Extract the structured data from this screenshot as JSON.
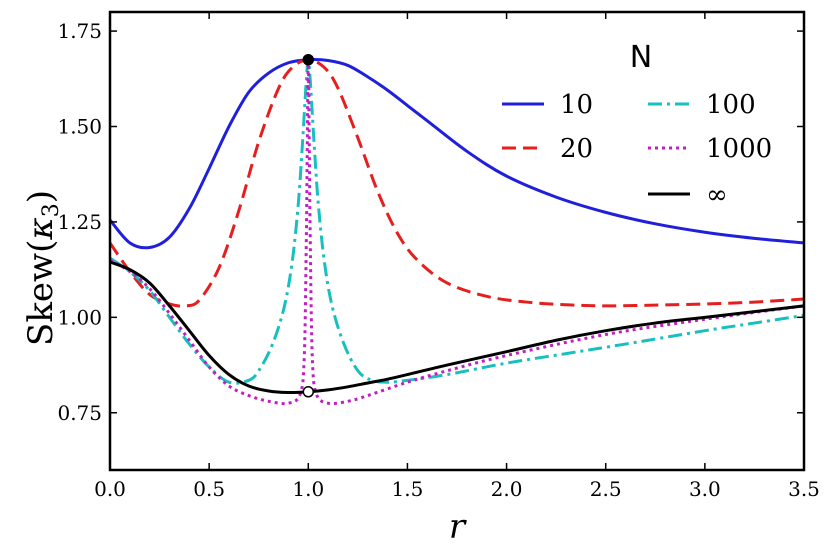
{
  "chart_data": {
    "type": "line",
    "title": "",
    "xlabel": "r",
    "ylabel_main": "Skew",
    "ylabel_sym": "κ",
    "ylabel_sub": "3",
    "xlim": [
      0.0,
      3.5
    ],
    "ylim": [
      0.6,
      1.8
    ],
    "xticks": [
      0.0,
      0.5,
      1.0,
      1.5,
      2.0,
      2.5,
      3.0,
      3.5
    ],
    "xtick_labels": [
      "0.0",
      "0.5",
      "1.0",
      "1.5",
      "2.0",
      "2.5",
      "3.0",
      "3.5"
    ],
    "yticks": [
      0.75,
      1.0,
      1.25,
      1.5,
      1.75
    ],
    "ytick_labels": [
      "0.75",
      "1.00",
      "1.25",
      "1.50",
      "1.75"
    ],
    "legend_title": "N",
    "legend_position": "top-right",
    "series": [
      {
        "name": "10",
        "color": "#1f1fdc",
        "dash": "solid",
        "x": [
          0.0,
          0.1,
          0.2,
          0.3,
          0.4,
          0.5,
          0.6,
          0.7,
          0.8,
          0.9,
          1.0,
          1.1,
          1.2,
          1.3,
          1.4,
          1.5,
          1.6,
          1.8,
          2.0,
          2.25,
          2.5,
          2.75,
          3.0,
          3.25,
          3.5
        ],
        "y": [
          1.255,
          1.195,
          1.183,
          1.21,
          1.285,
          1.39,
          1.5,
          1.59,
          1.64,
          1.667,
          1.675,
          1.673,
          1.66,
          1.63,
          1.595,
          1.555,
          1.515,
          1.435,
          1.37,
          1.315,
          1.275,
          1.245,
          1.223,
          1.207,
          1.195
        ]
      },
      {
        "name": "20",
        "color": "#e51e1e",
        "dash": "dashed",
        "x": [
          0.0,
          0.1,
          0.2,
          0.3,
          0.38,
          0.45,
          0.55,
          0.65,
          0.75,
          0.85,
          0.92,
          1.0,
          1.08,
          1.15,
          1.25,
          1.35,
          1.45,
          1.55,
          1.7,
          1.9,
          2.1,
          2.3,
          2.5,
          2.75,
          3.0,
          3.25,
          3.5
        ],
        "y": [
          1.195,
          1.12,
          1.06,
          1.035,
          1.03,
          1.045,
          1.13,
          1.28,
          1.46,
          1.6,
          1.655,
          1.675,
          1.655,
          1.6,
          1.47,
          1.33,
          1.22,
          1.15,
          1.09,
          1.055,
          1.04,
          1.033,
          1.03,
          1.032,
          1.035,
          1.04,
          1.048
        ]
      },
      {
        "name": "100",
        "color": "#17bfbf",
        "dash": "dashdot",
        "x": [
          0.0,
          0.1,
          0.2,
          0.3,
          0.4,
          0.5,
          0.6,
          0.7,
          0.75,
          0.82,
          0.88,
          0.92,
          0.95,
          0.97,
          0.99,
          1.0,
          1.01,
          1.03,
          1.05,
          1.08,
          1.12,
          1.18,
          1.25,
          1.32,
          1.4,
          1.5,
          1.7,
          2.0,
          2.3,
          2.6,
          3.0,
          3.25,
          3.5
        ],
        "y": [
          1.155,
          1.12,
          1.07,
          1.0,
          0.93,
          0.87,
          0.83,
          0.835,
          0.86,
          0.93,
          1.03,
          1.15,
          1.3,
          1.45,
          1.62,
          1.675,
          1.62,
          1.45,
          1.3,
          1.15,
          1.03,
          0.93,
          0.86,
          0.835,
          0.83,
          0.835,
          0.85,
          0.88,
          0.905,
          0.93,
          0.965,
          0.985,
          1.005
        ]
      },
      {
        "name": "1000",
        "color": "#c21fc2",
        "dash": "dotted",
        "x": [
          0.0,
          0.1,
          0.2,
          0.3,
          0.4,
          0.5,
          0.6,
          0.7,
          0.8,
          0.9,
          0.96,
          0.98,
          0.99,
          0.995,
          1.0,
          1.005,
          1.01,
          1.02,
          1.04,
          1.1,
          1.2,
          1.3,
          1.5,
          1.7,
          2.0,
          2.5,
          3.0,
          3.5
        ],
        "y": [
          1.15,
          1.12,
          1.075,
          1.01,
          0.94,
          0.87,
          0.82,
          0.795,
          0.78,
          0.775,
          0.8,
          0.9,
          1.2,
          1.45,
          1.675,
          1.45,
          1.2,
          0.9,
          0.8,
          0.775,
          0.78,
          0.795,
          0.83,
          0.86,
          0.9,
          0.955,
          0.995,
          1.03
        ]
      },
      {
        "name": "∞",
        "color": "#000000",
        "dash": "solid",
        "x": [
          0.0,
          0.1,
          0.2,
          0.3,
          0.4,
          0.5,
          0.6,
          0.7,
          0.8,
          0.9,
          1.0,
          1.1,
          1.2,
          1.3,
          1.4,
          1.5,
          1.7,
          2.0,
          2.25,
          2.5,
          2.75,
          3.0,
          3.25,
          3.5
        ],
        "y": [
          1.145,
          1.125,
          1.09,
          1.03,
          0.965,
          0.9,
          0.85,
          0.82,
          0.807,
          0.803,
          0.805,
          0.81,
          0.818,
          0.828,
          0.838,
          0.85,
          0.875,
          0.91,
          0.94,
          0.965,
          0.985,
          1.0,
          1.015,
          1.03
        ]
      }
    ],
    "markers": [
      {
        "x": 1.0,
        "y": 1.675,
        "fill": "#000000",
        "stroke": "#000000"
      },
      {
        "x": 1.0,
        "y": 0.805,
        "fill": "#ffffff",
        "stroke": "#000000"
      }
    ]
  }
}
